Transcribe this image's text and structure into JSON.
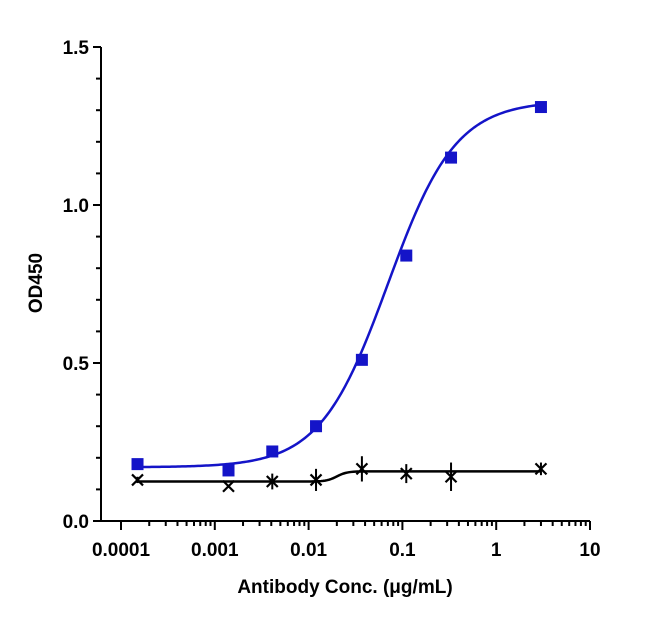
{
  "chart_data": {
    "type": "scatter",
    "title": "",
    "xlabel": "Antibody Conc. (μg/mL)",
    "ylabel": "OD450",
    "xscale": "log",
    "xlim": [
      0.0001,
      10
    ],
    "ylim": [
      0,
      1.5
    ],
    "x_ticks": [
      {
        "value": 0.0001,
        "label": "0.0001"
      },
      {
        "value": 0.001,
        "label": "0.001"
      },
      {
        "value": 0.01,
        "label": "0.01"
      },
      {
        "value": 0.1,
        "label": "0.1"
      },
      {
        "value": 1,
        "label": "1"
      },
      {
        "value": 10,
        "label": "10"
      }
    ],
    "y_ticks": [
      {
        "value": 0,
        "label": "0.0"
      },
      {
        "value": 0.5,
        "label": "0.5"
      },
      {
        "value": 1.0,
        "label": "1.0"
      },
      {
        "value": 1.5,
        "label": "1.5"
      }
    ],
    "grid": false,
    "legend": "none",
    "series": [
      {
        "marker": "square",
        "color": "#1414c8",
        "fit": "sigmoid",
        "x": [
          0.00015,
          0.0014,
          0.0041,
          0.012,
          0.037,
          0.11,
          0.33,
          3.0
        ],
        "y": [
          0.18,
          0.16,
          0.22,
          0.3,
          0.51,
          0.84,
          1.15,
          1.31
        ],
        "fit_params": {
          "bottom": 0.17,
          "top": 1.33,
          "ec50": 0.07,
          "hill": 1.2
        }
      },
      {
        "marker": "x",
        "color": "#000000",
        "fit": "step",
        "x": [
          0.00015,
          0.0014,
          0.0041,
          0.012,
          0.037,
          0.11,
          0.33,
          3.0
        ],
        "y": [
          0.13,
          0.11,
          0.125,
          0.13,
          0.165,
          0.15,
          0.14,
          0.165
        ],
        "error": [
          0.01,
          0.005,
          0.025,
          0.035,
          0.04,
          0.03,
          0.045,
          0.02
        ],
        "fit_params": {
          "bottom": 0.125,
          "top": 0.157,
          "ec50": 0.02,
          "hill": 8
        }
      }
    ]
  }
}
